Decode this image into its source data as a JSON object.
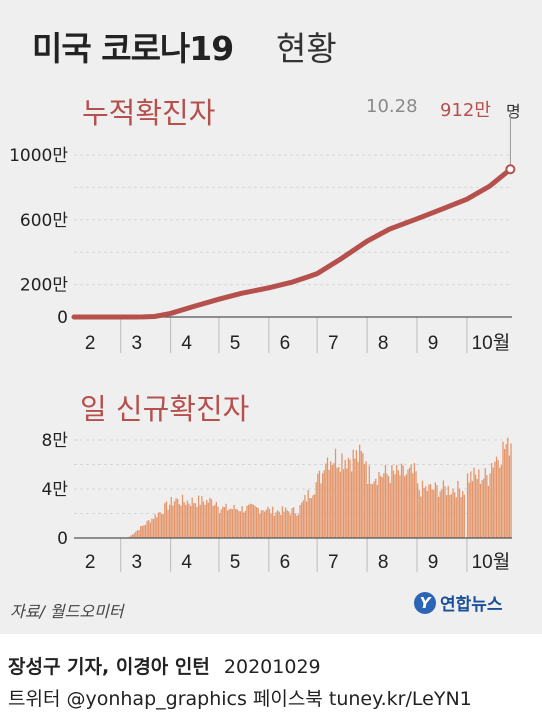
{
  "title": {
    "main": "미국 코로나19",
    "sub": "현황"
  },
  "latest": {
    "date": "10.28",
    "value": "912만",
    "unit": "명"
  },
  "source": "자료/ 월드오미터",
  "logo": {
    "mark": "Y",
    "text": "연합뉴스"
  },
  "credit": {
    "authors": "장성구 기자, 이경아 인턴",
    "date": "20201029",
    "social": "트위터 @yonhap_graphics  페이스북 tuney.kr/LeYN1"
  },
  "colors": {
    "line": "#b5504d",
    "bars": "#e4956a",
    "panel": "#efefef"
  },
  "chart_data": [
    {
      "type": "line",
      "title": "누적확진자",
      "x_labels": [
        "2",
        "3",
        "4",
        "5",
        "6",
        "7",
        "8",
        "9",
        "10월"
      ],
      "y_tick_labels": [
        "0",
        "200만",
        "600만",
        "1000만"
      ],
      "y_ticks": [
        0,
        200,
        600,
        1000
      ],
      "ylim": [
        0,
        1000
      ],
      "unit": "만 명",
      "x": [
        "2/1",
        "2/15",
        "3/1",
        "3/8",
        "3/15",
        "3/22",
        "4/1",
        "4/15",
        "5/1",
        "5/15",
        "6/1",
        "6/15",
        "6/25",
        "7/1",
        "7/15",
        "8/1",
        "8/15",
        "9/1",
        "9/15",
        "10/1",
        "10/15",
        "10/28"
      ],
      "values": [
        0,
        0,
        0,
        0.1,
        0.4,
        3,
        22,
        64,
        110,
        146,
        180,
        214,
        247,
        268,
        354,
        468,
        543,
        606,
        660,
        727,
        807,
        912
      ],
      "grid": true
    },
    {
      "type": "bar",
      "title": "일 신규확진자",
      "x_labels": [
        "2",
        "3",
        "4",
        "5",
        "6",
        "7",
        "8",
        "9",
        "10월"
      ],
      "y_tick_labels": [
        "0",
        "4만",
        "8만"
      ],
      "y_ticks": [
        0,
        4,
        8
      ],
      "ylim": [
        0,
        8
      ],
      "unit": "만 명",
      "series_shape": [
        {
          "period": "2/1-3/5",
          "level": 0.0
        },
        {
          "period": "3/5-3/20",
          "level_from": 0.0,
          "level_to": 1.6
        },
        {
          "period": "3/20-4/5",
          "level_from": 1.6,
          "level_to": 3.3
        },
        {
          "period": "4/5-4/30",
          "level": 3.0
        },
        {
          "period": "5/1-5/31",
          "level": 2.4
        },
        {
          "period": "6/1-6/20",
          "level": 2.2
        },
        {
          "period": "6/20-7/5",
          "level_from": 2.5,
          "level_to": 5.5
        },
        {
          "period": "7/5-7/31",
          "level": 6.6
        },
        {
          "period": "8/1-8/31",
          "level": 5.2
        },
        {
          "period": "9/1-9/30",
          "level": 4.0
        },
        {
          "period": "10/1-10/15",
          "level": 5.0
        },
        {
          "period": "10/15-10/28",
          "level_from": 6.0,
          "level_to": 8.0
        }
      ],
      "grid": true
    }
  ]
}
